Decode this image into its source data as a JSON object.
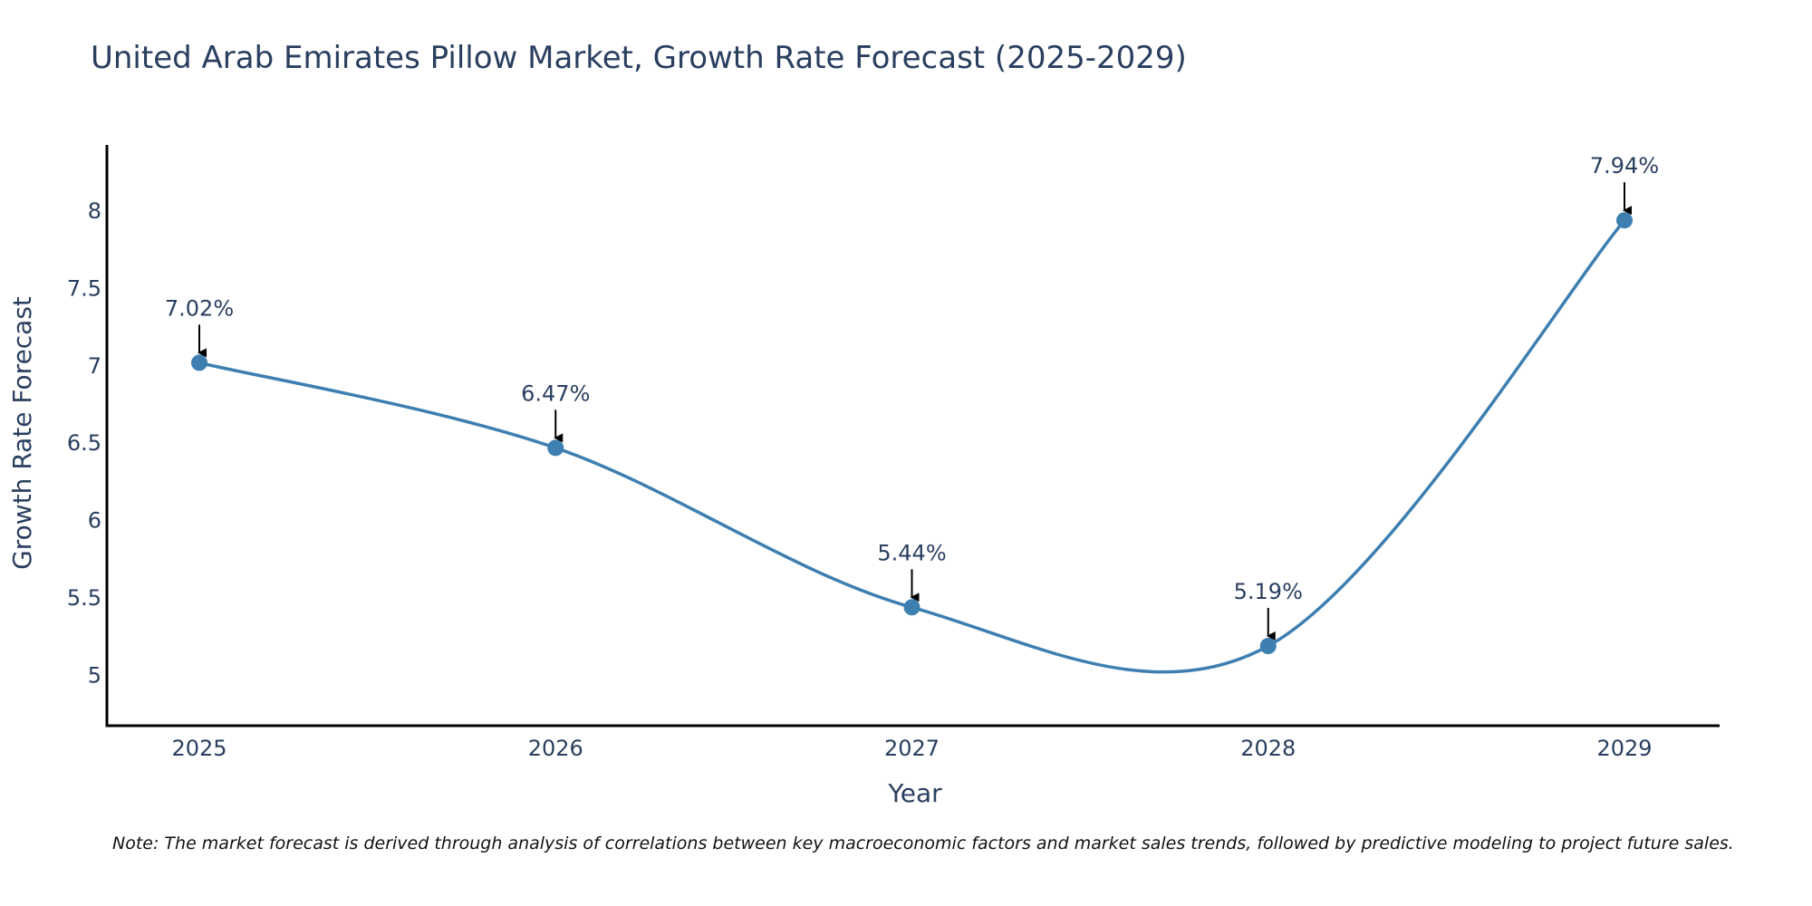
{
  "chart_data": {
    "type": "line",
    "title": "United Arab Emirates Pillow Market, Growth Rate Forecast (2025-2029)",
    "xlabel": "Year",
    "ylabel": "Growth Rate Forecast",
    "categories": [
      "2025",
      "2026",
      "2027",
      "2028",
      "2029"
    ],
    "values": [
      7.02,
      6.47,
      5.44,
      5.19,
      7.94
    ],
    "data_labels": [
      "7.02%",
      "6.47%",
      "5.44%",
      "5.19%",
      "7.94%"
    ],
    "yticks": [
      5,
      5.5,
      6,
      6.5,
      7,
      7.5,
      8
    ],
    "ytick_labels": [
      "5",
      "5.5",
      "6",
      "6.5",
      "7",
      "7.5",
      "8"
    ],
    "ylim": [
      4.675,
      8.427
    ],
    "grid": false,
    "line_shape": "spline",
    "series_color": "#3d7fb0",
    "note": "Note: The market forecast is derived through analysis of correlations between key macroeconomic factors and market sales trends, followed by predictive modeling to project future sales."
  }
}
